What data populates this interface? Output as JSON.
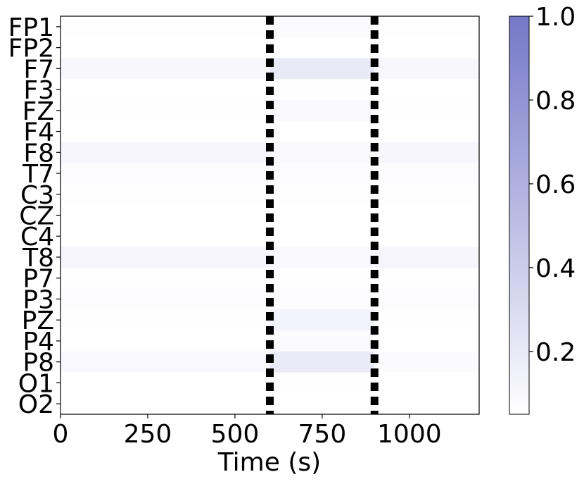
{
  "chart_data": {
    "type": "heatmap",
    "title": "",
    "xlabel": "Time (s)",
    "ylabel": "",
    "xlim": [
      0,
      1200
    ],
    "x_ticks": [
      0,
      250,
      500,
      750,
      1000
    ],
    "x_tick_labels": [
      "0",
      "250",
      "500",
      "750",
      "1000"
    ],
    "channels": [
      "FP1",
      "FP2",
      "F7",
      "F3",
      "FZ",
      "F4",
      "F8",
      "T7",
      "C3",
      "CZ",
      "C4",
      "T8",
      "P7",
      "P3",
      "PZ",
      "P4",
      "P8",
      "O1",
      "O2"
    ],
    "segment_boundaries_s": [
      600,
      900
    ],
    "segment_mean_intensity": [
      [
        0.06,
        0.08,
        0.06
      ],
      [
        0.05,
        0.05,
        0.05
      ],
      [
        0.1,
        0.2,
        0.1
      ],
      [
        0.05,
        0.06,
        0.05
      ],
      [
        0.06,
        0.09,
        0.06
      ],
      [
        0.05,
        0.05,
        0.05
      ],
      [
        0.11,
        0.09,
        0.11
      ],
      [
        0.07,
        0.07,
        0.07
      ],
      [
        0.06,
        0.06,
        0.06
      ],
      [
        0.05,
        0.05,
        0.05
      ],
      [
        0.05,
        0.05,
        0.05
      ],
      [
        0.12,
        0.09,
        0.12
      ],
      [
        0.06,
        0.06,
        0.06
      ],
      [
        0.07,
        0.07,
        0.07
      ],
      [
        0.06,
        0.14,
        0.06
      ],
      [
        0.05,
        0.08,
        0.05
      ],
      [
        0.09,
        0.19,
        0.08
      ],
      [
        0.05,
        0.06,
        0.05
      ],
      [
        0.05,
        0.05,
        0.05
      ]
    ],
    "colorbar": {
      "min": 0.05,
      "max": 1.0,
      "color_low": "#ffffff",
      "color_high": "#7478c8",
      "ticks": [
        0.2,
        0.4,
        0.6,
        0.8,
        1.0
      ],
      "tick_labels": [
        "0.2",
        "0.4",
        "0.6",
        "0.8",
        "1.0"
      ]
    },
    "grid": false,
    "legend": "none"
  }
}
